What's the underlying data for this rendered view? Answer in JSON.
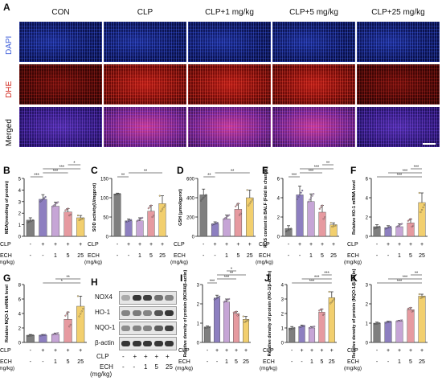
{
  "panel_a": {
    "letter": "A",
    "columns": [
      "CON",
      "CLP",
      "CLP+1 mg/kg",
      "CLP+5 mg/kg",
      "CLP+25 mg/kg"
    ],
    "rows": [
      "DAPI",
      "DHE",
      "Merged"
    ],
    "row_colors": {
      "DAPI": "#3a5bd9",
      "DHE": "#d12a1f",
      "Merged": "#111111"
    }
  },
  "letters": [
    "B",
    "C",
    "D",
    "E",
    "F",
    "G",
    "H",
    "I",
    "J",
    "K"
  ],
  "conditions": {
    "clp_label": "CLP",
    "clp_values": [
      "-",
      "+",
      "+",
      "+",
      "+"
    ],
    "ech_label": "ECH",
    "ech_unit": "(mg/kg)",
    "ech_values": [
      "-",
      "-",
      "1",
      "5",
      "25"
    ]
  },
  "bar_colors": [
    "#7f7f7f",
    "#8d7fc0",
    "#c6a5d6",
    "#e69aa0",
    "#f2cf6e"
  ],
  "chart_data": [
    {
      "id": "B",
      "type": "bar",
      "ylabel": "MDA(nmol/mg of protein)",
      "ylim": [
        0,
        5
      ],
      "yticks": [
        0,
        1,
        2,
        3,
        4,
        5
      ],
      "values": [
        1.4,
        3.2,
        2.6,
        2.1,
        1.6
      ],
      "errors": [
        0.2,
        0.4,
        0.35,
        0.3,
        0.2
      ],
      "sig": [
        {
          "a": 0,
          "b": 1,
          "t": "***"
        },
        {
          "a": 1,
          "b": 3,
          "t": "***"
        },
        {
          "a": 1,
          "b": 4,
          "t": "***"
        },
        {
          "a": 3,
          "b": 4,
          "t": "*"
        }
      ]
    },
    {
      "id": "C",
      "type": "bar",
      "ylabel": "SOD activity(U/mgprot)",
      "ylim": [
        0,
        150
      ],
      "yticks": [
        0,
        50,
        100,
        150
      ],
      "values": [
        110,
        40,
        40,
        65,
        85
      ],
      "errors": [
        2,
        5,
        8,
        15,
        20
      ],
      "sig": [
        {
          "a": 0,
          "b": 1,
          "t": "**"
        },
        {
          "a": 1,
          "b": 4,
          "t": "**"
        }
      ]
    },
    {
      "id": "D",
      "type": "bar",
      "ylabel": "GSH (μmol/gprot)",
      "ylim": [
        0,
        600
      ],
      "yticks": [
        0,
        200,
        400,
        600
      ],
      "values": [
        430,
        130,
        180,
        280,
        400
      ],
      "errors": [
        60,
        20,
        40,
        60,
        80
      ],
      "sig": [
        {
          "a": 0,
          "b": 1,
          "t": "**"
        },
        {
          "a": 1,
          "b": 4,
          "t": "**"
        }
      ]
    },
    {
      "id": "E",
      "type": "bar",
      "ylabel": "ROS content in BALF (Fold in change)",
      "ylim": [
        0,
        6
      ],
      "yticks": [
        0,
        2,
        4,
        6
      ],
      "values": [
        0.8,
        4.3,
        3.6,
        2.5,
        1.2
      ],
      "errors": [
        0.3,
        0.9,
        0.8,
        0.7,
        0.2
      ],
      "sig": [
        {
          "a": 0,
          "b": 1,
          "t": "***"
        },
        {
          "a": 1,
          "b": 3,
          "t": "***"
        },
        {
          "a": 1,
          "b": 4,
          "t": "***"
        },
        {
          "a": 3,
          "b": 4,
          "t": "**"
        }
      ]
    },
    {
      "id": "F",
      "type": "bar",
      "ylabel": "Relative HO-1 mRNA level",
      "ylim": [
        0,
        6
      ],
      "yticks": [
        0,
        2,
        4,
        6
      ],
      "values": [
        1.0,
        0.9,
        1.0,
        1.4,
        3.5
      ],
      "errors": [
        0.2,
        0.2,
        0.3,
        0.4,
        1.0
      ],
      "sig": [
        {
          "a": 0,
          "b": 4,
          "t": "***"
        },
        {
          "a": 1,
          "b": 4,
          "t": "***"
        },
        {
          "a": 3,
          "b": 4,
          "t": "***"
        }
      ]
    },
    {
      "id": "G",
      "type": "bar",
      "ylabel": "Relative NQO-1 mRNA level",
      "ylim": [
        0,
        8
      ],
      "yticks": [
        0,
        2,
        4,
        6,
        8
      ],
      "values": [
        1.0,
        1.0,
        1.1,
        3.2,
        5.0
      ],
      "errors": [
        0.1,
        0.1,
        0.2,
        1.0,
        1.4
      ],
      "sig": [
        {
          "a": 1,
          "b": 4,
          "t": "*"
        },
        {
          "a": 2,
          "b": 4,
          "t": "**"
        }
      ]
    },
    {
      "id": "I",
      "type": "bar",
      "ylabel": "Relative density of protein (NOX4/β-actin)",
      "ylim": [
        0,
        3
      ],
      "yticks": [
        0,
        1,
        2,
        3
      ],
      "values": [
        0.8,
        2.3,
        2.1,
        1.5,
        1.2
      ],
      "errors": [
        0.05,
        0.15,
        0.15,
        0.1,
        0.15
      ],
      "sig": [
        {
          "a": 0,
          "b": 1,
          "t": "***"
        },
        {
          "a": 1,
          "b": 3,
          "t": "***"
        },
        {
          "a": 1,
          "b": 4,
          "t": "**"
        },
        {
          "a": 2,
          "b": 3,
          "t": "*"
        }
      ]
    },
    {
      "id": "J",
      "type": "bar",
      "ylabel": "Relative density of protein (HO-1/β-actin)",
      "ylim": [
        0,
        4
      ],
      "yticks": [
        0,
        1,
        2,
        3,
        4
      ],
      "values": [
        1.0,
        1.1,
        1.0,
        2.1,
        3.1
      ],
      "errors": [
        0.1,
        0.1,
        0.1,
        0.2,
        0.4
      ],
      "sig": [
        {
          "a": 0,
          "b": 4,
          "t": "***"
        },
        {
          "a": 1,
          "b": 4,
          "t": "***"
        },
        {
          "a": 3,
          "b": 4,
          "t": "***"
        }
      ]
    },
    {
      "id": "K",
      "type": "bar",
      "ylabel": "Relative density of protein (NQO-1/β-actin)",
      "ylim": [
        0,
        3
      ],
      "yticks": [
        0,
        1,
        2,
        3
      ],
      "values": [
        1.0,
        1.05,
        1.1,
        1.7,
        2.4
      ],
      "errors": [
        0.05,
        0.05,
        0.05,
        0.1,
        0.1
      ],
      "sig": [
        {
          "a": 0,
          "b": 4,
          "t": "***"
        },
        {
          "a": 1,
          "b": 4,
          "t": "***"
        },
        {
          "a": 3,
          "b": 4,
          "t": "**"
        }
      ]
    }
  ],
  "western_blot": {
    "letter": "H",
    "proteins": [
      "NOX4",
      "HO-1",
      "NQO-1",
      "β-actin"
    ],
    "band_intensity": [
      [
        0.3,
        0.9,
        0.85,
        0.6,
        0.5
      ],
      [
        0.5,
        0.55,
        0.5,
        0.75,
        0.9
      ],
      [
        0.45,
        0.5,
        0.5,
        0.7,
        0.85
      ],
      [
        0.9,
        0.9,
        0.9,
        0.9,
        0.9
      ]
    ]
  }
}
